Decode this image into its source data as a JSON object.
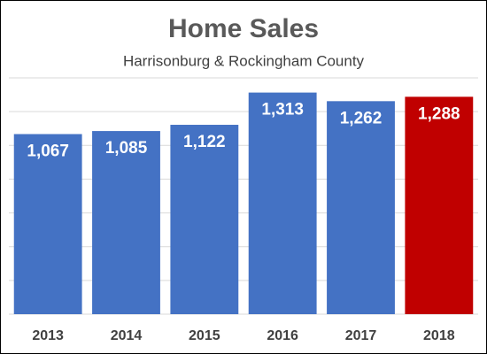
{
  "chart_data": {
    "type": "bar",
    "title": "Home Sales",
    "subtitle": "Harrisonburg & Rockingham County",
    "categories": [
      "2013",
      "2014",
      "2015",
      "2016",
      "2017",
      "2018"
    ],
    "values": [
      1067,
      1085,
      1122,
      1313,
      1262,
      1288
    ],
    "value_labels": [
      "1,067",
      "1,085",
      "1,122",
      "1,313",
      "1,262",
      "1,288"
    ],
    "colors": [
      "#4472c4",
      "#4472c4",
      "#4472c4",
      "#4472c4",
      "#4472c4",
      "#c00000"
    ],
    "ylim": [
      0,
      1400
    ],
    "yticks": [
      0,
      200,
      400,
      600,
      800,
      1000,
      1200,
      1400
    ],
    "grid": true
  }
}
